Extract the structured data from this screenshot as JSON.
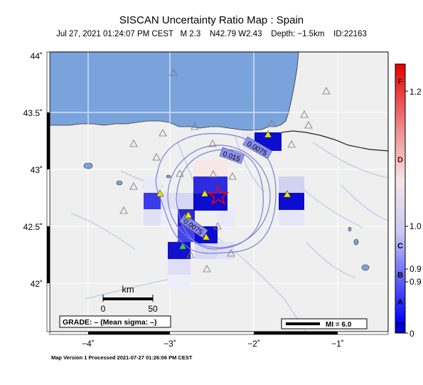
{
  "title": "SISCAN Uncertainty Ratio Map : Spain",
  "subtitle": "Jul 27, 2021 01:24:07 PM CEST   M 2.3    N42.79 W2.43    Depth: −1.5km    ID:22163",
  "footer": "Map Version 1 Processed 2021-07-27 01:26:06 PM CEST",
  "y_ticks": [
    "44˚",
    "43.5˚",
    "43˚",
    "42.5˚",
    "42˚"
  ],
  "x_ticks": [
    "−4˚",
    "−3˚",
    "−2˚",
    "−1˚"
  ],
  "scale_bar": {
    "unit": "km",
    "labels": [
      "0",
      "50"
    ]
  },
  "grade_label": "GRADE: – (Mean sigma: –)",
  "mi_label": "MI = 6.0",
  "contours": [
    "0.0075",
    "0.015",
    "0.0075"
  ],
  "colorbar": {
    "letters": [
      "F",
      "D",
      "C",
      "B",
      "A"
    ],
    "values": [
      "1.2",
      "1.0",
      "0.9",
      "0.9",
      "0"
    ]
  },
  "colors": {
    "sea": "#7aa3dc",
    "land": "#efefef",
    "epicenter": "#ff0000",
    "grid_high": "#0000cc",
    "grid_low": "#c8c8ee"
  },
  "icons": {
    "epicenter": "star-icon",
    "station_used": "filled-triangle-icon",
    "station_other": "hollow-triangle-icon"
  }
}
